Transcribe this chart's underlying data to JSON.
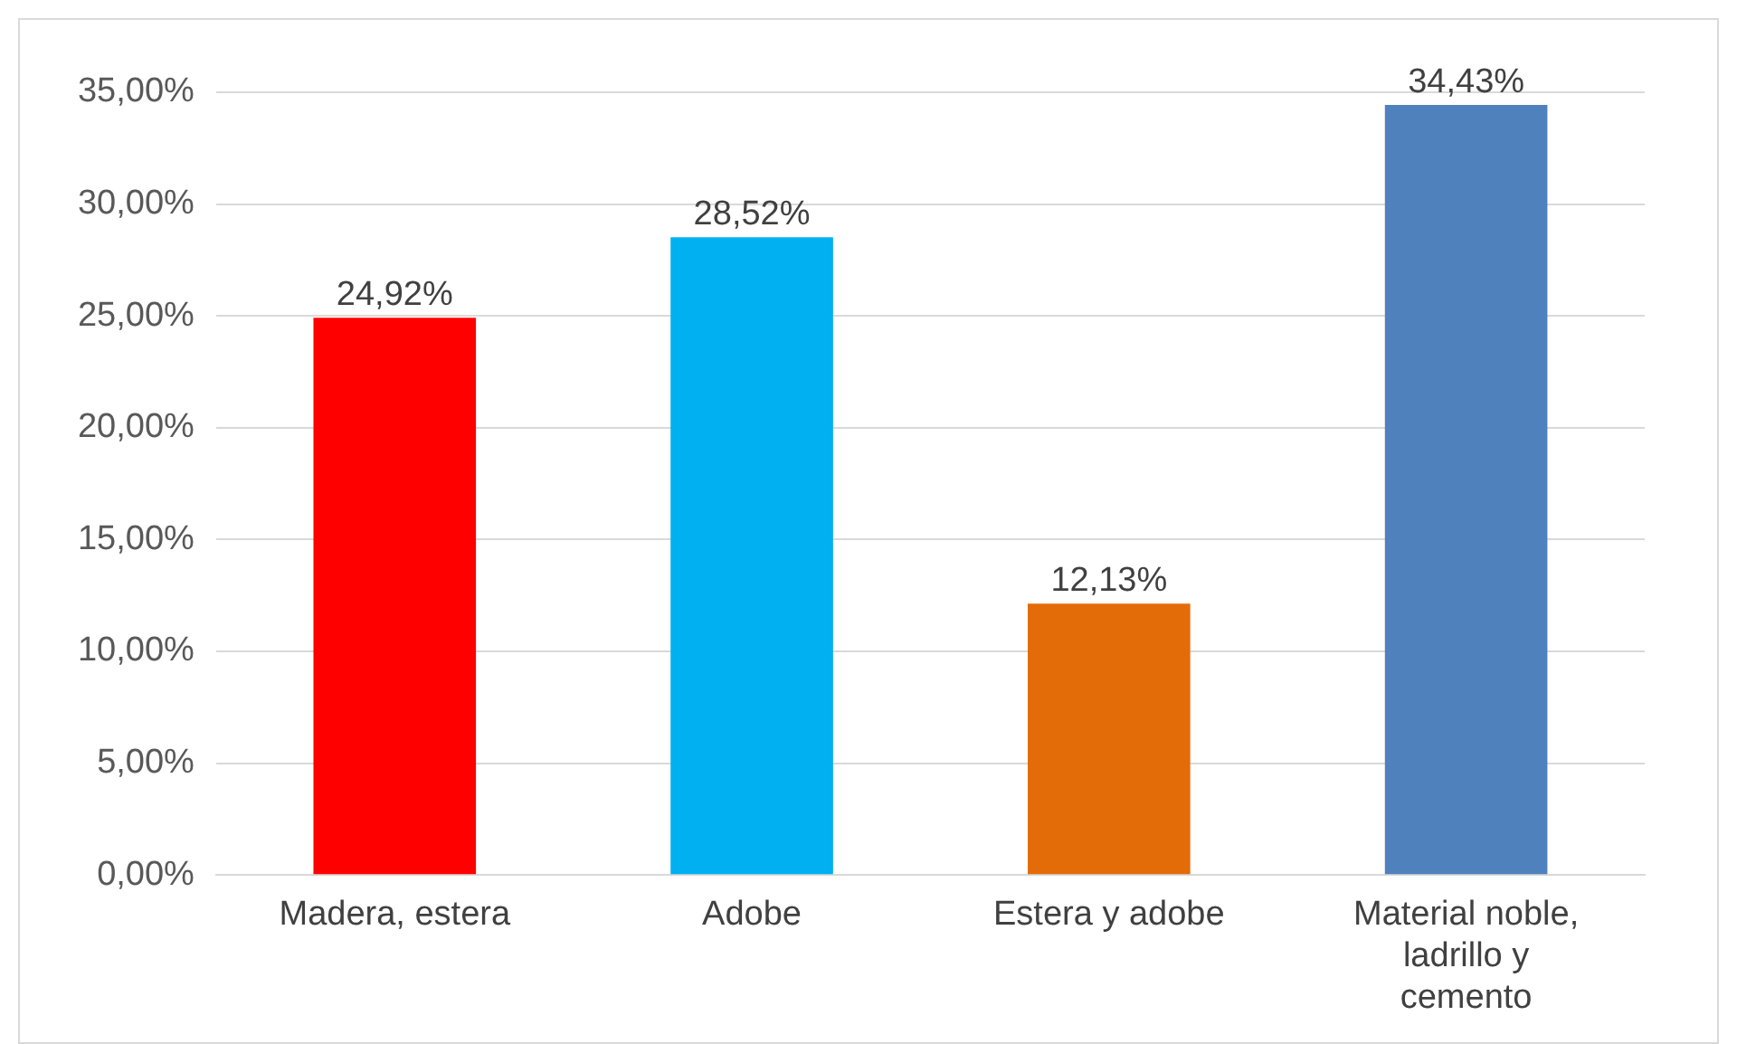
{
  "chart_data": {
    "type": "bar",
    "categories": [
      "Madera, estera",
      "Adobe",
      "Estera y adobe",
      "Material noble, ladrillo y cemento"
    ],
    "values": [
      24.92,
      28.52,
      12.13,
      34.43
    ],
    "colors": [
      "#ff0000",
      "#00b0f0",
      "#e36c09",
      "#4f81bd"
    ],
    "value_labels": [
      "24,92%",
      "28,52%",
      "12,13%",
      "34,43%"
    ],
    "ylim": [
      0,
      35
    ],
    "yticks": [
      {
        "value": 0,
        "label": "0,00%"
      },
      {
        "value": 5,
        "label": "5,00%"
      },
      {
        "value": 10,
        "label": "10,00%"
      },
      {
        "value": 15,
        "label": "15,00%"
      },
      {
        "value": 20,
        "label": "20,00%"
      },
      {
        "value": 25,
        "label": "25,00%"
      },
      {
        "value": 30,
        "label": "30,00%"
      },
      {
        "value": 35,
        "label": "35,00%"
      }
    ],
    "grid": true,
    "legend": false
  }
}
